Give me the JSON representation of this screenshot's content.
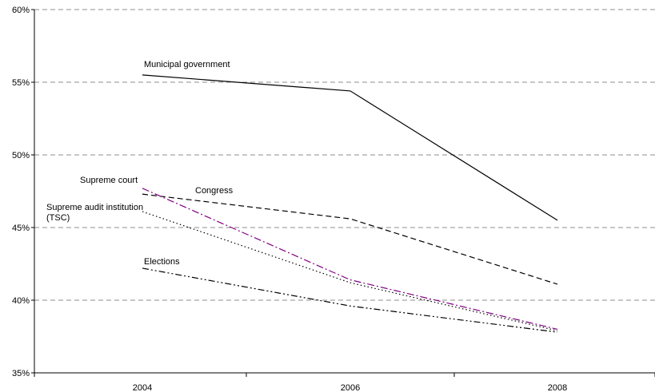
{
  "chart_data": {
    "type": "line",
    "x": [
      "2004",
      "2006",
      "2008"
    ],
    "ylim": [
      35,
      60
    ],
    "y_ticks": [
      "35%",
      "40%",
      "45%",
      "50%",
      "55%",
      "60%"
    ],
    "y_tick_values": [
      35,
      40,
      45,
      50,
      55,
      60
    ],
    "grid": "horizontal dashed",
    "series": [
      {
        "name": "Municipal government",
        "label_lines": [
          "Municipal government"
        ],
        "values": [
          55.5,
          54.4,
          45.5
        ],
        "color": "#000000",
        "dash": "solid"
      },
      {
        "name": "Congress",
        "label_lines": [
          "Congress"
        ],
        "values": [
          47.3,
          45.6,
          41.1
        ],
        "color": "#000000",
        "dash": "dashed"
      },
      {
        "name": "Supreme court",
        "label_lines": [
          "Supreme court"
        ],
        "values": [
          47.7,
          41.4,
          38.0
        ],
        "color": "#800080",
        "dash": "dashdot"
      },
      {
        "name": "Supreme audit institution (TSC)",
        "label_lines": [
          "Supreme audit institution",
          "(TSC)"
        ],
        "values": [
          46.1,
          41.2,
          37.9
        ],
        "color": "#000000",
        "dash": "dotted"
      },
      {
        "name": "Elections",
        "label_lines": [
          "Elections"
        ],
        "values": [
          42.2,
          39.6,
          37.8
        ],
        "color": "#000000",
        "dash": "dashdotdot"
      }
    ]
  }
}
